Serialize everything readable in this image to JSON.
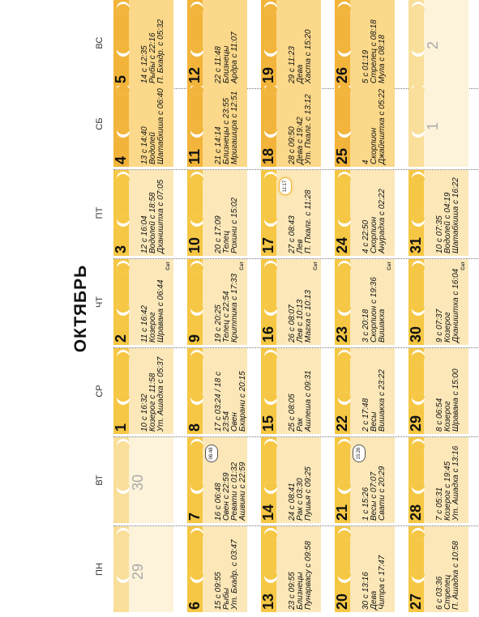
{
  "calendar": {
    "title": "ОКТЯБРЬ",
    "weekdays": [
      "ПН",
      "ВТ",
      "СР",
      "ЧТ",
      "ПТ",
      "СБ",
      "ВС"
    ],
    "weeks": [
      [
        {
          "day": "29",
          "off": true,
          "lines": []
        },
        {
          "day": "30",
          "off": true,
          "lines": []
        },
        {
          "day": "1",
          "lines": [
            "10 с 16:32",
            "Козерог с 11:58",
            "Ут. Ашадха с 05:37"
          ]
        },
        {
          "day": "2",
          "lines": [
            "11 с 16:42",
            "Козерог",
            "Шравана с 06:44"
          ],
          "extra": "Сат"
        },
        {
          "day": "3",
          "lines": [
            "12 с 16:04",
            "Водолей с 18:58",
            "Дхаништха с 07:05"
          ]
        },
        {
          "day": "4",
          "lines": [
            "13 с 14:40",
            "Водолей",
            "Шатабхиша с 06:40"
          ]
        },
        {
          "day": "5",
          "lines": [
            "14 с 12:35",
            "Рыбы с 22:16",
            "П. Бхадр. с 05:32"
          ]
        }
      ],
      [
        {
          "day": "6",
          "lines": [
            "15 с 09:55",
            "Рыбы",
            "Ут. Бхадр. с 03:47"
          ]
        },
        {
          "day": "7",
          "badge": "06:48",
          "lines": [
            "16 с 06:48",
            "Овен с 22:59",
            "Ревати с 01:32",
            "Ашвини с 22:59"
          ]
        },
        {
          "day": "8",
          "lines": [
            "17 с 03:24 / 18 с",
            "23:54",
            "Овен",
            "Бхарани с 20:15"
          ]
        },
        {
          "day": "9",
          "lines": [
            "19 с 20:25",
            "Телец с 22:54",
            "Криттика с 17:33"
          ],
          "extra": "Сат"
        },
        {
          "day": "10",
          "lines": [
            "20 с 17:09",
            "Телец",
            "Рохини с 15:02"
          ]
        },
        {
          "day": "11",
          "lines": [
            "21 с 14:14",
            "Близнецы с 23:55",
            "Мригашира с 12:51"
          ]
        },
        {
          "day": "12",
          "lines": [
            "22 с 11:48",
            "Близнецы",
            "Ардра с 11:07"
          ]
        }
      ],
      [
        {
          "day": "13",
          "lines": [
            "23 с 09:55",
            "Близнецы",
            "Пунарвасу с 09:58"
          ]
        },
        {
          "day": "14",
          "lines": [
            "24 с 08:41",
            "Рак с 03:30",
            "Пушья с 09:25"
          ]
        },
        {
          "day": "15",
          "lines": [
            "25 с 08:05",
            "Рак",
            "Ашлеша с 09:31"
          ]
        },
        {
          "day": "16",
          "lines": [
            "26 с 08:07",
            "Лев с 10:13",
            "Магха с 10:13"
          ],
          "extra": "Сат"
        },
        {
          "day": "17",
          "badge": "11:17",
          "full": true,
          "lines": [
            "27 с 08:43",
            "Лев",
            "П. Пхалг. с 11:28"
          ]
        },
        {
          "day": "18",
          "lines": [
            "28 с 09:50",
            "Дева с 19:42",
            "Ут. Пхалг. с 13:12"
          ]
        },
        {
          "day": "19",
          "lines": [
            "29 с 11:23",
            "Дева",
            "Хаста с 15:20"
          ]
        }
      ],
      [
        {
          "day": "20",
          "lines": [
            "30 с 13:16",
            "Дева",
            "Читра с 17:47"
          ]
        },
        {
          "day": "21",
          "badge": "15:26",
          "lines": [
            "1 с 15:26",
            "Весы с 07:07",
            "Свати с 20:29"
          ]
        },
        {
          "day": "22",
          "lines": [
            "2 с 17:48",
            "Весы",
            "Вишакха с 23:22"
          ]
        },
        {
          "day": "23",
          "lines": [
            "3 с 20:18",
            "Скорпион с 19:36",
            "Вишакха"
          ],
          "extra": "Сат"
        },
        {
          "day": "24",
          "lines": [
            "4 с 22:50",
            "Скорпион",
            "Анурадха с 02:22"
          ]
        },
        {
          "day": "25",
          "lines": [
            "4",
            "Скорпион",
            "Джайештха с 05:22"
          ]
        },
        {
          "day": "26",
          "lines": [
            "5 с 01:19",
            "Стрелец с 08:18",
            "Мула с 08:18"
          ]
        }
      ],
      [
        {
          "day": "27",
          "lines": [
            "6 с 03:36",
            "Стрелец",
            "П. Ашадха с 10:58"
          ]
        },
        {
          "day": "28",
          "lines": [
            "7 с 05:31",
            "Козерог с 19:45",
            "Ут. Ашадха с 13:16"
          ]
        },
        {
          "day": "29",
          "lines": [
            "8 с 06:54",
            "Козерог",
            "Шравана с 15:00"
          ]
        },
        {
          "day": "30",
          "lines": [
            "9 с 07:37",
            "Козерог",
            "Дхаништха с 16:04"
          ],
          "extra": "Сат"
        },
        {
          "day": "31",
          "lines": [
            "10 с 07:35",
            "Водолей с 04:19",
            "Шатабхиша с 16:22"
          ]
        },
        {
          "day": "1",
          "off": true,
          "lines": []
        },
        {
          "day": "2",
          "off": true,
          "lines": []
        }
      ]
    ]
  }
}
